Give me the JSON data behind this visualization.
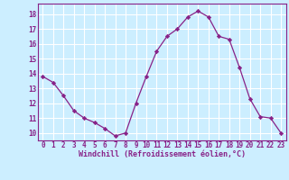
{
  "x": [
    0,
    1,
    2,
    3,
    4,
    5,
    6,
    7,
    8,
    9,
    10,
    11,
    12,
    13,
    14,
    15,
    16,
    17,
    18,
    19,
    20,
    21,
    22,
    23
  ],
  "y": [
    13.8,
    13.4,
    12.5,
    11.5,
    11.0,
    10.7,
    10.3,
    9.8,
    10.0,
    12.0,
    13.8,
    15.5,
    16.5,
    17.0,
    17.8,
    18.2,
    17.8,
    16.5,
    16.3,
    14.4,
    12.3,
    11.1,
    11.0,
    10.0
  ],
  "line_color": "#882288",
  "marker": "D",
  "marker_size": 2.2,
  "bg_color": "#cceeff",
  "grid_color": "#ffffff",
  "xlabel": "Windchill (Refroidissement éolien,°C)",
  "xlabel_color": "#882288",
  "tick_color": "#882288",
  "ylim": [
    9.5,
    18.7
  ],
  "xlim": [
    -0.5,
    23.5
  ],
  "yticks": [
    10,
    11,
    12,
    13,
    14,
    15,
    16,
    17,
    18
  ],
  "xticks": [
    0,
    1,
    2,
    3,
    4,
    5,
    6,
    7,
    8,
    9,
    10,
    11,
    12,
    13,
    14,
    15,
    16,
    17,
    18,
    19,
    20,
    21,
    22,
    23
  ],
  "tick_fontsize": 5.5,
  "xlabel_fontsize": 6.0
}
